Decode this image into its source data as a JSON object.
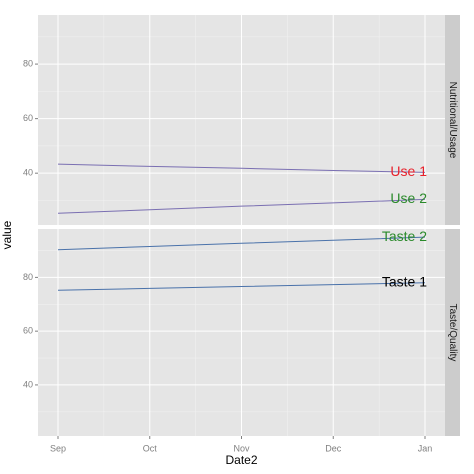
{
  "chart_data": [
    {
      "type": "line",
      "strip": "Nutritional/Usage",
      "y_label": "value",
      "categories": [
        "Sep",
        "Oct",
        "Nov",
        "Dec",
        "Jan"
      ],
      "ylim": [
        21,
        98
      ],
      "yticks": [
        40,
        60,
        80
      ],
      "grid": true,
      "series": [
        {
          "name": "Use 1",
          "color": "#7a6fb2",
          "label_color": "#e8202a",
          "values": [
            43.3,
            42.5,
            41.8,
            41.0,
            40.3
          ]
        },
        {
          "name": "Use 2",
          "color": "#7a6fb2",
          "label_color": "#2a8a2a",
          "values": [
            25.3,
            26.6,
            27.9,
            29.1,
            30.4
          ]
        }
      ]
    },
    {
      "type": "line",
      "strip": "Taste/Quality",
      "x_label": "Date2",
      "categories": [
        "Sep",
        "Oct",
        "Nov",
        "Dec",
        "Jan"
      ],
      "ylim": [
        21,
        98
      ],
      "yticks": [
        40,
        60,
        80
      ],
      "grid": true,
      "series": [
        {
          "name": "Taste 2",
          "color": "#4a72aa",
          "label_color": "#2a8a2a",
          "values": [
            90.3,
            91.5,
            92.7,
            93.8,
            95.0
          ]
        },
        {
          "name": "Taste 1",
          "color": "#4a72aa",
          "label_color": "#000000",
          "values": [
            75.2,
            75.9,
            76.6,
            77.3,
            78.0
          ]
        }
      ]
    }
  ]
}
